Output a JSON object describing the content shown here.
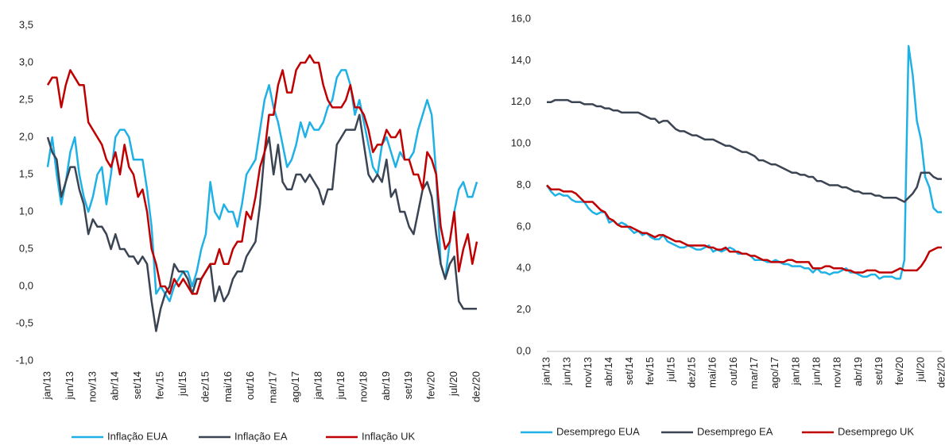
{
  "chart_data": [
    {
      "type": "line",
      "categories": [
        "jan/13",
        null,
        null,
        null,
        null,
        "jun/13",
        null,
        null,
        null,
        null,
        "nov/13",
        null,
        null,
        null,
        null,
        "abr/14",
        null,
        null,
        null,
        null,
        "set/14",
        null,
        null,
        null,
        null,
        "fev/15",
        null,
        null,
        null,
        null,
        "jul/15",
        null,
        null,
        null,
        null,
        "dez/15",
        null,
        null,
        null,
        null,
        "mai/16",
        null,
        null,
        null,
        null,
        "out/16",
        null,
        null,
        null,
        null,
        "mar/17",
        null,
        null,
        null,
        null,
        "ago/17",
        null,
        null,
        null,
        null,
        "jan/18",
        null,
        null,
        null,
        null,
        "jun/18",
        null,
        null,
        null,
        null,
        "nov/18",
        null,
        null,
        null,
        null,
        "abr/19",
        null,
        null,
        null,
        null,
        "set/19",
        null,
        null,
        null,
        null,
        "fev/20",
        null,
        null,
        null,
        null,
        "jul/20",
        null,
        null,
        null,
        null,
        "dez/20"
      ],
      "ylim": [
        -1.0,
        3.5
      ],
      "yticks": [
        {
          "value": -1.0,
          "label": "-1,0"
        },
        {
          "value": -0.5,
          "label": "-0,5"
        },
        {
          "value": 0,
          "label": "0,0"
        },
        {
          "value": 0.5,
          "label": "0,5"
        },
        {
          "value": 1.0,
          "label": "1,0"
        },
        {
          "value": 1.5,
          "label": "1,5"
        },
        {
          "value": 2.0,
          "label": "2,0"
        },
        {
          "value": 2.5,
          "label": "2,5"
        },
        {
          "value": 3.0,
          "label": "3,0"
        },
        {
          "value": 3.5,
          "label": "3,5"
        }
      ],
      "series": [
        {
          "name": "Inflação EUA",
          "color": "#1fb1e6",
          "values": [
            1.6,
            2.0,
            1.5,
            1.1,
            1.4,
            1.8,
            2.0,
            1.5,
            1.2,
            1.0,
            1.2,
            1.5,
            1.6,
            1.1,
            1.5,
            2.0,
            2.1,
            2.1,
            2.0,
            1.7,
            1.7,
            1.7,
            1.3,
            0.8,
            -0.1,
            0.0,
            -0.1,
            -0.2,
            0.0,
            0.1,
            0.2,
            0.2,
            0.0,
            0.2,
            0.5,
            0.7,
            1.4,
            1.0,
            0.9,
            1.1,
            1.0,
            1.0,
            0.8,
            1.1,
            1.5,
            1.6,
            1.7,
            2.1,
            2.5,
            2.7,
            2.4,
            2.2,
            1.9,
            1.6,
            1.7,
            1.9,
            2.2,
            2.0,
            2.2,
            2.1,
            2.1,
            2.2,
            2.4,
            2.5,
            2.8,
            2.9,
            2.9,
            2.7,
            2.3,
            2.5,
            2.2,
            1.9,
            1.6,
            1.5,
            1.9,
            2.0,
            1.8,
            1.6,
            1.8,
            1.7,
            1.7,
            1.8,
            2.1,
            2.3,
            2.5,
            2.3,
            1.5,
            0.3,
            0.1,
            0.6,
            1.0,
            1.3,
            1.4,
            1.2,
            1.2,
            1.4
          ]
        },
        {
          "name": "Inflação EA",
          "color": "#3a4453",
          "values": [
            2.0,
            1.8,
            1.7,
            1.2,
            1.4,
            1.6,
            1.6,
            1.3,
            1.1,
            0.7,
            0.9,
            0.8,
            0.8,
            0.7,
            0.5,
            0.7,
            0.5,
            0.5,
            0.4,
            0.4,
            0.3,
            0.4,
            0.3,
            -0.2,
            -0.6,
            -0.3,
            -0.1,
            0.0,
            0.3,
            0.2,
            0.2,
            0.1,
            -0.1,
            0.1,
            0.1,
            0.2,
            0.3,
            -0.2,
            0.0,
            -0.2,
            -0.1,
            0.1,
            0.2,
            0.2,
            0.4,
            0.5,
            0.6,
            1.1,
            1.8,
            2.0,
            1.5,
            1.9,
            1.4,
            1.3,
            1.3,
            1.5,
            1.5,
            1.4,
            1.5,
            1.4,
            1.3,
            1.1,
            1.3,
            1.3,
            1.9,
            2.0,
            2.1,
            2.1,
            2.1,
            2.3,
            1.9,
            1.5,
            1.4,
            1.5,
            1.4,
            1.7,
            1.2,
            1.3,
            1.0,
            1.0,
            0.8,
            0.7,
            1.0,
            1.3,
            1.4,
            1.2,
            0.7,
            0.3,
            0.1,
            0.3,
            0.4,
            -0.2,
            -0.3,
            -0.3,
            -0.3,
            -0.3
          ]
        },
        {
          "name": "Inflação UK",
          "color": "#c00000",
          "values": [
            2.7,
            2.8,
            2.8,
            2.4,
            2.7,
            2.9,
            2.8,
            2.7,
            2.7,
            2.2,
            2.1,
            2.0,
            1.9,
            1.7,
            1.6,
            1.8,
            1.5,
            1.9,
            1.6,
            1.5,
            1.2,
            1.3,
            1.0,
            0.5,
            0.3,
            0.0,
            0.0,
            -0.1,
            0.1,
            0.0,
            0.1,
            0.0,
            -0.1,
            -0.1,
            0.1,
            0.2,
            0.3,
            0.3,
            0.5,
            0.3,
            0.3,
            0.5,
            0.6,
            0.6,
            1.0,
            0.9,
            1.2,
            1.6,
            1.8,
            2.3,
            2.3,
            2.7,
            2.9,
            2.6,
            2.6,
            2.9,
            3.0,
            3.0,
            3.1,
            3.0,
            3.0,
            2.7,
            2.5,
            2.4,
            2.4,
            2.4,
            2.5,
            2.7,
            2.4,
            2.4,
            2.3,
            2.1,
            1.8,
            1.9,
            1.9,
            2.1,
            2.0,
            2.0,
            2.1,
            1.7,
            1.7,
            1.5,
            1.5,
            1.3,
            1.8,
            1.7,
            1.5,
            0.8,
            0.5,
            0.6,
            1.0,
            0.2,
            0.5,
            0.7,
            0.3,
            0.6
          ]
        }
      ]
    },
    {
      "type": "line",
      "axis_line": true,
      "categories": [
        "jan/13",
        null,
        null,
        null,
        null,
        "jun/13",
        null,
        null,
        null,
        null,
        "nov/13",
        null,
        null,
        null,
        null,
        "abr/14",
        null,
        null,
        null,
        null,
        "set/14",
        null,
        null,
        null,
        null,
        "fev/15",
        null,
        null,
        null,
        null,
        "jul/15",
        null,
        null,
        null,
        null,
        "dez/15",
        null,
        null,
        null,
        null,
        "mai/16",
        null,
        null,
        null,
        null,
        "out/16",
        null,
        null,
        null,
        null,
        "mar/17",
        null,
        null,
        null,
        null,
        "ago/17",
        null,
        null,
        null,
        null,
        "jan/18",
        null,
        null,
        null,
        null,
        "jun/18",
        null,
        null,
        null,
        null,
        "nov/18",
        null,
        null,
        null,
        null,
        "abr/19",
        null,
        null,
        null,
        null,
        "set/19",
        null,
        null,
        null,
        null,
        "fev/20",
        null,
        null,
        null,
        null,
        "jul/20",
        null,
        null,
        null,
        null,
        "dez/20"
      ],
      "ylim": [
        0,
        16.0
      ],
      "yticks": [
        {
          "value": 0,
          "label": "0,0"
        },
        {
          "value": 2.0,
          "label": "2,0"
        },
        {
          "value": 4.0,
          "label": "4,0"
        },
        {
          "value": 6.0,
          "label": "6,0"
        },
        {
          "value": 8.0,
          "label": "8,0"
        },
        {
          "value": 10.0,
          "label": "10,0"
        },
        {
          "value": 12.0,
          "label": "12,0"
        },
        {
          "value": 14.0,
          "label": "14,0"
        },
        {
          "value": 16.0,
          "label": "16,0"
        }
      ],
      "series": [
        {
          "name": "Desemprego EUA",
          "color": "#1fb1e6",
          "values": [
            8.0,
            7.7,
            7.5,
            7.6,
            7.5,
            7.5,
            7.3,
            7.2,
            7.2,
            7.2,
            6.9,
            6.7,
            6.6,
            6.7,
            6.7,
            6.2,
            6.3,
            6.1,
            6.2,
            6.1,
            5.9,
            5.7,
            5.8,
            5.6,
            5.7,
            5.5,
            5.4,
            5.4,
            5.6,
            5.3,
            5.2,
            5.1,
            5.0,
            5.0,
            5.1,
            5.0,
            4.9,
            4.9,
            5.0,
            5.1,
            4.8,
            4.9,
            4.8,
            4.9,
            5.0,
            4.9,
            4.7,
            4.7,
            4.7,
            4.6,
            4.4,
            4.4,
            4.4,
            4.3,
            4.3,
            4.4,
            4.3,
            4.2,
            4.2,
            4.1,
            4.1,
            4.1,
            4.0,
            4.0,
            3.8,
            4.0,
            3.8,
            3.8,
            3.7,
            3.8,
            3.8,
            3.9,
            4.0,
            3.8,
            3.8,
            3.7,
            3.6,
            3.6,
            3.7,
            3.7,
            3.5,
            3.6,
            3.6,
            3.6,
            3.5,
            3.5,
            4.4,
            14.7,
            13.3,
            11.1,
            10.2,
            8.4,
            7.9,
            6.9,
            6.7,
            6.7
          ]
        },
        {
          "name": "Desemprego EA",
          "color": "#3a4453",
          "values": [
            12.0,
            12.0,
            12.1,
            12.1,
            12.1,
            12.1,
            12.0,
            12.0,
            12.0,
            11.9,
            11.9,
            11.9,
            11.8,
            11.8,
            11.7,
            11.7,
            11.6,
            11.6,
            11.5,
            11.5,
            11.5,
            11.5,
            11.5,
            11.4,
            11.3,
            11.2,
            11.2,
            11.0,
            11.1,
            11.1,
            10.9,
            10.7,
            10.6,
            10.6,
            10.5,
            10.4,
            10.4,
            10.3,
            10.2,
            10.2,
            10.2,
            10.1,
            10.0,
            9.9,
            9.9,
            9.8,
            9.7,
            9.6,
            9.6,
            9.5,
            9.4,
            9.2,
            9.2,
            9.1,
            9.0,
            9.0,
            8.9,
            8.8,
            8.7,
            8.6,
            8.6,
            8.5,
            8.5,
            8.4,
            8.4,
            8.2,
            8.2,
            8.1,
            8.0,
            8.0,
            8.0,
            7.9,
            7.9,
            7.8,
            7.7,
            7.7,
            7.6,
            7.6,
            7.6,
            7.5,
            7.5,
            7.4,
            7.4,
            7.4,
            7.4,
            7.3,
            7.2,
            7.4,
            7.6,
            7.9,
            8.6,
            8.6,
            8.6,
            8.4,
            8.3,
            8.3
          ]
        },
        {
          "name": "Desemprego UK",
          "color": "#c00000",
          "values": [
            8.0,
            7.8,
            7.8,
            7.8,
            7.7,
            7.7,
            7.7,
            7.6,
            7.4,
            7.2,
            7.2,
            7.2,
            7.0,
            6.8,
            6.7,
            6.4,
            6.3,
            6.1,
            6.0,
            6.0,
            6.0,
            5.9,
            5.8,
            5.7,
            5.7,
            5.6,
            5.5,
            5.6,
            5.6,
            5.5,
            5.4,
            5.3,
            5.3,
            5.2,
            5.1,
            5.1,
            5.1,
            5.1,
            5.1,
            5.0,
            5.0,
            4.9,
            4.9,
            5.0,
            4.8,
            4.8,
            4.8,
            4.7,
            4.7,
            4.6,
            4.6,
            4.5,
            4.4,
            4.4,
            4.3,
            4.3,
            4.3,
            4.3,
            4.4,
            4.4,
            4.3,
            4.3,
            4.3,
            4.3,
            4.0,
            4.0,
            4.0,
            4.1,
            4.1,
            4.0,
            4.0,
            4.0,
            3.9,
            3.9,
            3.8,
            3.8,
            3.8,
            3.9,
            3.9,
            3.9,
            3.8,
            3.8,
            3.8,
            3.8,
            3.9,
            4.0,
            3.9,
            3.9,
            3.9,
            3.9,
            4.1,
            4.4,
            4.8,
            4.9,
            5.0,
            5.0
          ]
        }
      ]
    }
  ]
}
